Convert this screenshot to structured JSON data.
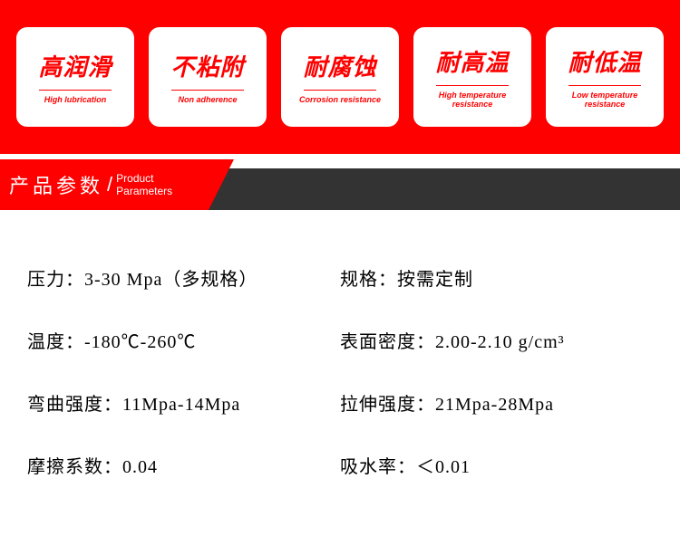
{
  "colors": {
    "brand_red": "#fe0000",
    "dark": "#333333",
    "white": "#ffffff",
    "text": "#000000"
  },
  "features": [
    {
      "cn": "高润滑",
      "en": "High lubrication"
    },
    {
      "cn": "不粘附",
      "en": "Non adherence"
    },
    {
      "cn": "耐腐蚀",
      "en": "Corrosion resistance"
    },
    {
      "cn": "耐高温",
      "en": "High temperature\nresistance"
    },
    {
      "cn": "耐低温",
      "en": "Low temperature\nresistance"
    }
  ],
  "section_header": {
    "cn": "产品参数",
    "en_line1": "Product",
    "en_line2": "Parameters"
  },
  "parameters": {
    "left": [
      {
        "label": "压力：",
        "value": "3-30 Mpa（多规格）"
      },
      {
        "label": "温度：",
        "value": "-180℃-260℃"
      },
      {
        "label": "弯曲强度：",
        "value": "11Mpa-14Mpa"
      },
      {
        "label": "摩擦系数：",
        "value": "0.04"
      }
    ],
    "right": [
      {
        "label": "规格：",
        "value": "按需定制"
      },
      {
        "label": "表面密度：",
        "value": "2.00-2.10 g/cm³"
      },
      {
        "label": "拉伸强度：",
        "value": "21Mpa-28Mpa"
      },
      {
        "label": "吸水率：",
        "value": "＜0.01"
      }
    ]
  }
}
